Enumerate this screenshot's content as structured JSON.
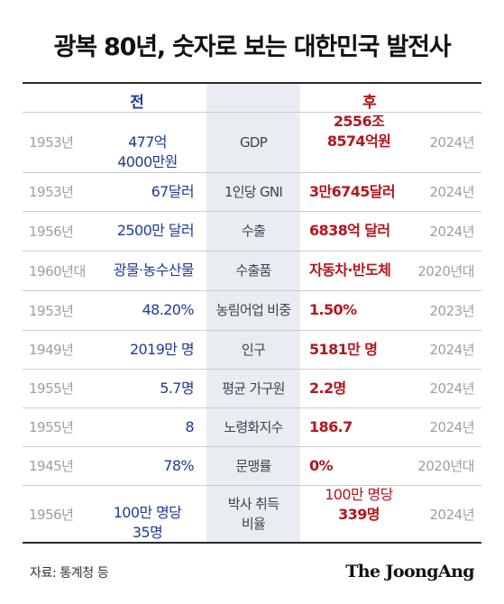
{
  "title": "광복 80년, 숫자로 보는 대한민국 발전사",
  "header": {
    "before": "전",
    "after": "후"
  },
  "colors": {
    "before": "#1f3b95",
    "after": "#b3161c",
    "center_bg": "#e9edf1"
  },
  "rows": [
    {
      "year_before": "1953년",
      "before_lines": [
        "477억",
        "4000만원"
      ],
      "label_lines": [
        "GDP"
      ],
      "after_lines": [
        "2556조",
        "8574억원"
      ],
      "year_after": "2024년"
    },
    {
      "year_before": "1953년",
      "before_lines": [
        "67달러"
      ],
      "label_lines": [
        "1인당 GNI"
      ],
      "after_lines": [
        "3만6745달러"
      ],
      "year_after": "2024년"
    },
    {
      "year_before": "1956년",
      "before_lines": [
        "2500만 달러"
      ],
      "label_lines": [
        "수출"
      ],
      "after_lines": [
        "6838억 달러"
      ],
      "year_after": "2024년"
    },
    {
      "year_before": "1960년대",
      "before_lines": [
        "광물·농수산물"
      ],
      "label_lines": [
        "수출품"
      ],
      "after_lines": [
        "자동차·반도체"
      ],
      "year_after": "2020년대"
    },
    {
      "year_before": "1953년",
      "before_lines": [
        "48.20%"
      ],
      "label_lines": [
        "농림어업 비중"
      ],
      "after_lines": [
        "1.50%"
      ],
      "year_after": "2023년"
    },
    {
      "year_before": "1949년",
      "before_lines": [
        "2019만 명"
      ],
      "label_lines": [
        "인구"
      ],
      "after_lines": [
        "5181만 명"
      ],
      "year_after": "2024년"
    },
    {
      "year_before": "1955년",
      "before_lines": [
        "5.7명"
      ],
      "label_lines": [
        "평균 가구원"
      ],
      "after_lines": [
        "2.2명"
      ],
      "year_after": "2024년"
    },
    {
      "year_before": "1955년",
      "before_lines": [
        "8"
      ],
      "label_lines": [
        "노령화지수"
      ],
      "after_lines": [
        "186.7"
      ],
      "year_after": "2024년"
    },
    {
      "year_before": "1945년",
      "before_lines": [
        "78%"
      ],
      "label_lines": [
        "문맹률"
      ],
      "after_lines": [
        "0%"
      ],
      "year_after": "2020년대"
    },
    {
      "year_before": "1956년",
      "before_lines": [
        "100만 명당",
        "35명"
      ],
      "label_lines": [
        "박사 취득",
        "비율"
      ],
      "after_lines": [
        "100만 명당",
        "339명"
      ],
      "year_after": "2024년"
    }
  ],
  "footer": {
    "source": "자료: 통계청 등",
    "brand": "The JoongAng"
  }
}
